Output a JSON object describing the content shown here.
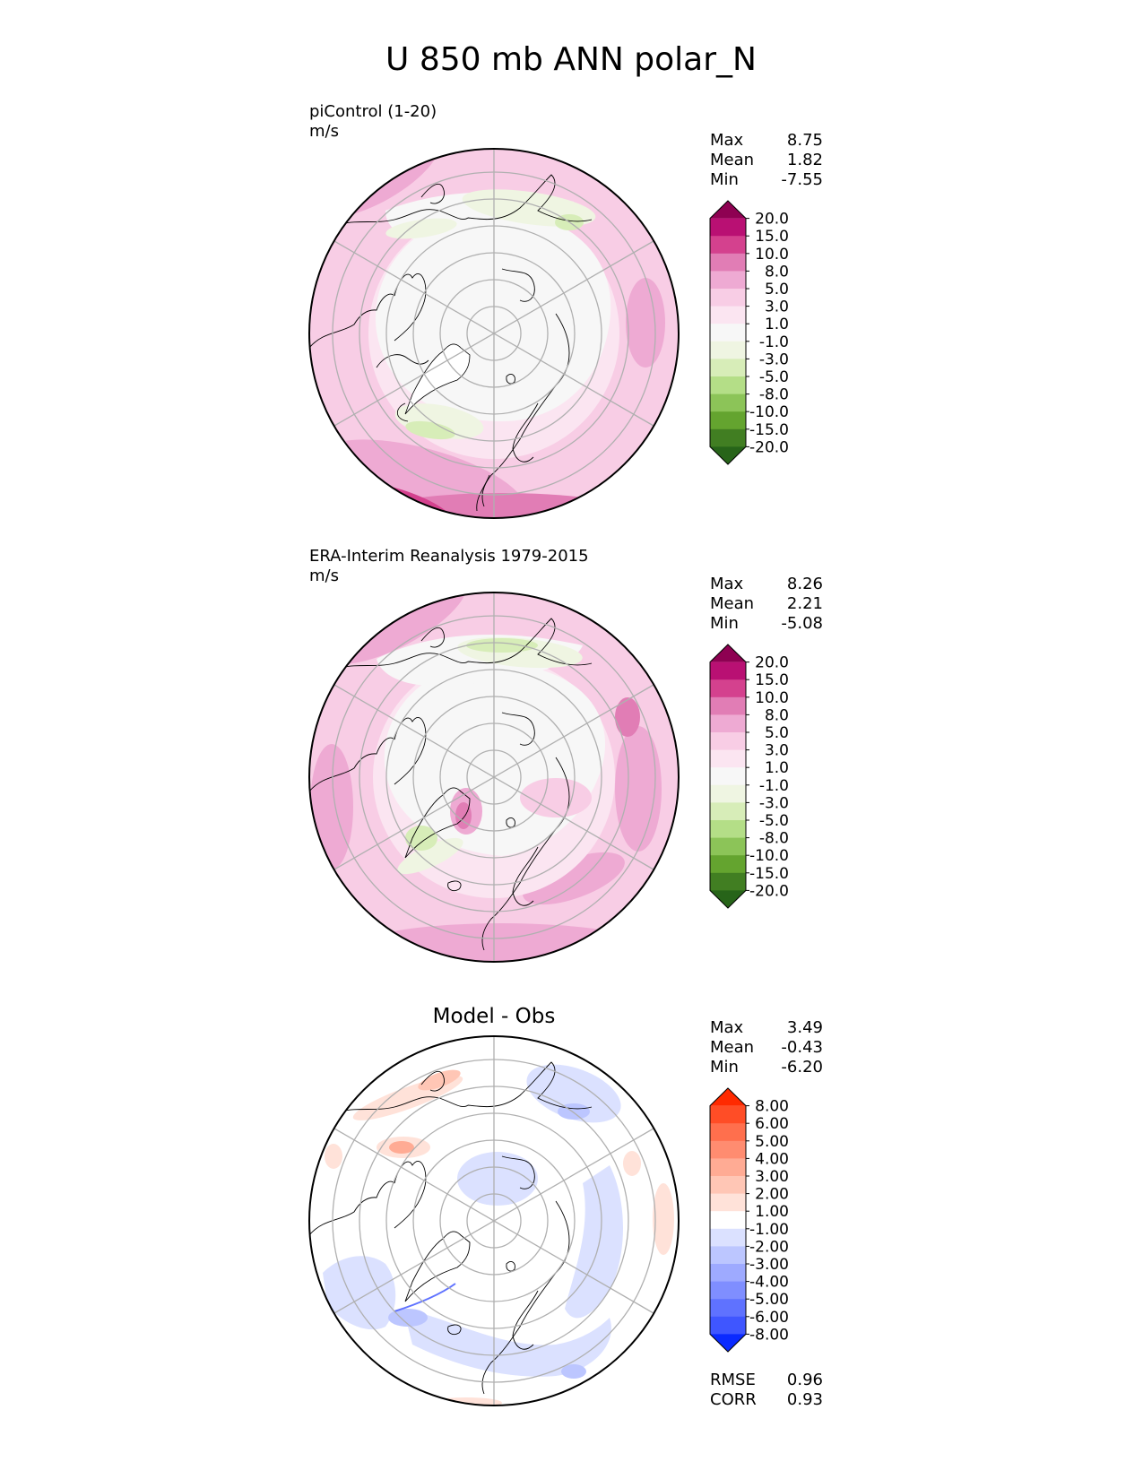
{
  "title": "U 850 mb ANN polar_N",
  "stat_labels": {
    "max": "Max",
    "mean": "Mean",
    "min": "Min",
    "rmse": "RMSE",
    "corr": "CORR"
  },
  "panels": [
    {
      "id": "model",
      "name": "piControl (1-20)",
      "units": "m/s",
      "stats": {
        "max": "8.75",
        "mean": "1.82",
        "min": "-7.55"
      },
      "colorbar": {
        "ticks": [
          "20.0",
          "15.0",
          "10.0",
          "8.0",
          "5.0",
          "3.0",
          "1.0",
          "-1.0",
          "-3.0",
          "-5.0",
          "-8.0",
          "-10.0",
          "-15.0",
          "-20.0"
        ],
        "colors": [
          "#8e0152",
          "#b91073",
          "#d4418e",
          "#e17db5",
          "#eeaad3",
          "#f8cde5",
          "#fbe5f1",
          "#f7f7f7",
          "#eff5e2",
          "#d7edb8",
          "#b4de87",
          "#8cc458",
          "#64a42f",
          "#417e22",
          "#276419"
        ]
      }
    },
    {
      "id": "obs",
      "name": "ERA-Interim Reanalysis 1979-2015",
      "units": "m/s",
      "stats": {
        "max": "8.26",
        "mean": "2.21",
        "min": "-5.08"
      },
      "colorbar": {
        "ticks": [
          "20.0",
          "15.0",
          "10.0",
          "8.0",
          "5.0",
          "3.0",
          "1.0",
          "-1.0",
          "-3.0",
          "-5.0",
          "-8.0",
          "-10.0",
          "-15.0",
          "-20.0"
        ],
        "colors": [
          "#8e0152",
          "#b91073",
          "#d4418e",
          "#e17db5",
          "#eeaad3",
          "#f8cde5",
          "#fbe5f1",
          "#f7f7f7",
          "#eff5e2",
          "#d7edb8",
          "#b4de87",
          "#8cc458",
          "#64a42f",
          "#417e22",
          "#276419"
        ]
      }
    },
    {
      "id": "diff",
      "name": "Model - Obs",
      "units": "",
      "stats": {
        "max": "3.49",
        "mean": "-0.43",
        "min": "-6.20",
        "rmse": "0.96",
        "corr": "0.93"
      },
      "colorbar": {
        "ticks": [
          "8.00",
          "6.00",
          "5.00",
          "4.00",
          "3.00",
          "2.00",
          "1.00",
          "-1.00",
          "-2.00",
          "-3.00",
          "-4.00",
          "-5.00",
          "-6.00",
          "-8.00"
        ],
        "colors": [
          "#ff2a00",
          "#ff4d26",
          "#ff6f4d",
          "#ff8c70",
          "#ffab94",
          "#ffc6b5",
          "#ffe2d9",
          "#ffffff",
          "#dbe1ff",
          "#bcc6ff",
          "#9eaaff",
          "#7f8eff",
          "#5f72ff",
          "#3f56ff",
          "#0a2aff"
        ]
      }
    }
  ]
}
